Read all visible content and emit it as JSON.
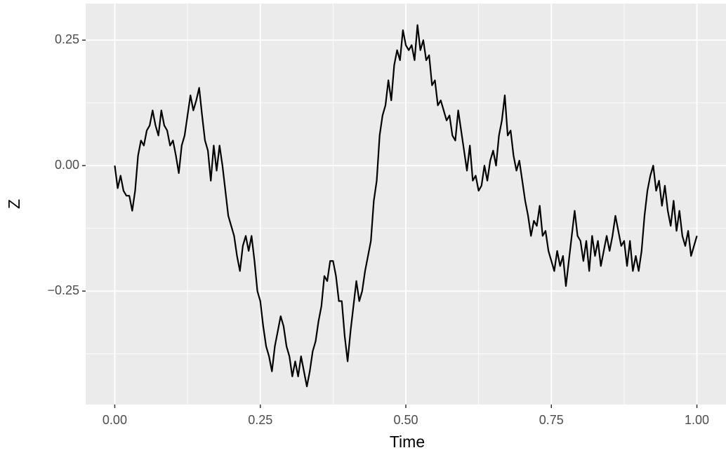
{
  "chart_data": {
    "type": "line",
    "x_label": "Time",
    "y_label": "Z",
    "x": [
      0,
      0.005,
      0.01,
      0.015,
      0.02,
      0.025,
      0.03,
      0.035,
      0.04,
      0.045,
      0.05,
      0.055,
      0.06,
      0.065,
      0.07,
      0.075,
      0.08,
      0.085,
      0.09,
      0.095,
      0.1,
      0.105,
      0.11,
      0.115,
      0.12,
      0.125,
      0.13,
      0.135,
      0.14,
      0.145,
      0.15,
      0.155,
      0.16,
      0.165,
      0.17,
      0.175,
      0.18,
      0.185,
      0.19,
      0.195,
      0.2,
      0.205,
      0.21,
      0.215,
      0.22,
      0.225,
      0.23,
      0.235,
      0.24,
      0.245,
      0.25,
      0.255,
      0.26,
      0.265,
      0.27,
      0.275,
      0.28,
      0.285,
      0.29,
      0.295,
      0.3,
      0.305,
      0.31,
      0.315,
      0.32,
      0.325,
      0.33,
      0.335,
      0.34,
      0.345,
      0.35,
      0.355,
      0.36,
      0.365,
      0.37,
      0.375,
      0.38,
      0.385,
      0.39,
      0.395,
      0.4,
      0.405,
      0.41,
      0.415,
      0.42,
      0.425,
      0.43,
      0.435,
      0.44,
      0.445,
      0.45,
      0.455,
      0.46,
      0.465,
      0.47,
      0.475,
      0.48,
      0.485,
      0.49,
      0.495,
      0.5,
      0.505,
      0.51,
      0.515,
      0.52,
      0.525,
      0.53,
      0.535,
      0.54,
      0.545,
      0.55,
      0.555,
      0.56,
      0.565,
      0.57,
      0.575,
      0.58,
      0.585,
      0.59,
      0.595,
      0.6,
      0.605,
      0.61,
      0.615,
      0.62,
      0.625,
      0.63,
      0.635,
      0.64,
      0.645,
      0.65,
      0.655,
      0.66,
      0.665,
      0.67,
      0.675,
      0.68,
      0.685,
      0.69,
      0.695,
      0.7,
      0.705,
      0.71,
      0.715,
      0.72,
      0.725,
      0.73,
      0.735,
      0.74,
      0.745,
      0.75,
      0.755,
      0.76,
      0.765,
      0.77,
      0.775,
      0.78,
      0.785,
      0.79,
      0.795,
      0.8,
      0.805,
      0.81,
      0.815,
      0.82,
      0.825,
      0.83,
      0.835,
      0.84,
      0.845,
      0.85,
      0.855,
      0.86,
      0.865,
      0.87,
      0.875,
      0.88,
      0.885,
      0.89,
      0.895,
      0.9,
      0.905,
      0.91,
      0.915,
      0.92,
      0.925,
      0.93,
      0.935,
      0.94,
      0.945,
      0.95,
      0.955,
      0.96,
      0.965,
      0.97,
      0.975,
      0.98,
      0.985,
      0.99,
      0.995,
      1
    ],
    "series": [
      {
        "color": "#000000",
        "values": [
          0,
          -0.045,
          -0.02,
          -0.05,
          -0.06,
          -0.06,
          -0.09,
          -0.05,
          0.02,
          0.05,
          0.04,
          0.07,
          0.08,
          0.11,
          0.08,
          0.06,
          0.11,
          0.08,
          0.07,
          0.04,
          0.05,
          0.02,
          -0.015,
          0.04,
          0.06,
          0.1,
          0.14,
          0.11,
          0.13,
          0.155,
          0.1,
          0.05,
          0.03,
          -0.03,
          0.04,
          -0.01,
          0.04,
          0,
          -0.05,
          -0.1,
          -0.12,
          -0.14,
          -0.18,
          -0.21,
          -0.16,
          -0.14,
          -0.17,
          -0.14,
          -0.19,
          -0.25,
          -0.27,
          -0.32,
          -0.36,
          -0.38,
          -0.41,
          -0.36,
          -0.33,
          -0.3,
          -0.32,
          -0.36,
          -0.38,
          -0.42,
          -0.39,
          -0.42,
          -0.38,
          -0.41,
          -0.44,
          -0.41,
          -0.37,
          -0.35,
          -0.31,
          -0.28,
          -0.22,
          -0.23,
          -0.19,
          -0.19,
          -0.22,
          -0.27,
          -0.27,
          -0.34,
          -0.39,
          -0.33,
          -0.28,
          -0.23,
          -0.27,
          -0.25,
          -0.21,
          -0.18,
          -0.15,
          -0.07,
          -0.03,
          0.06,
          0.1,
          0.12,
          0.17,
          0.13,
          0.2,
          0.23,
          0.21,
          0.27,
          0.24,
          0.23,
          0.24,
          0.21,
          0.28,
          0.23,
          0.25,
          0.21,
          0.22,
          0.16,
          0.17,
          0.12,
          0.13,
          0.11,
          0.09,
          0.1,
          0.06,
          0.05,
          0.11,
          0.07,
          0.03,
          -0.01,
          0.04,
          -0.03,
          -0.02,
          -0.05,
          -0.04,
          0,
          -0.03,
          0.01,
          0.03,
          0,
          0.06,
          0.09,
          0.14,
          0.06,
          0.07,
          0.02,
          -0.01,
          0.01,
          -0.03,
          -0.07,
          -0.1,
          -0.14,
          -0.11,
          -0.12,
          -0.08,
          -0.14,
          -0.13,
          -0.17,
          -0.19,
          -0.21,
          -0.17,
          -0.2,
          -0.18,
          -0.24,
          -0.19,
          -0.14,
          -0.09,
          -0.14,
          -0.15,
          -0.19,
          -0.15,
          -0.21,
          -0.14,
          -0.18,
          -0.15,
          -0.2,
          -0.17,
          -0.14,
          -0.17,
          -0.14,
          -0.1,
          -0.13,
          -0.16,
          -0.15,
          -0.2,
          -0.15,
          -0.21,
          -0.18,
          -0.21,
          -0.17,
          -0.1,
          -0.05,
          -0.02,
          0,
          -0.05,
          -0.03,
          -0.08,
          -0.04,
          -0.09,
          -0.12,
          -0.07,
          -0.13,
          -0.09,
          -0.14,
          -0.16,
          -0.13,
          -0.18,
          -0.16,
          -0.14
        ]
      }
    ],
    "xlim": [
      -0.05,
      1.05
    ],
    "ylim": [
      -0.476,
      0.323
    ],
    "xticks": [
      {
        "value": 0,
        "label": "0.00"
      },
      {
        "value": 0.25,
        "label": "0.25"
      },
      {
        "value": 0.5,
        "label": "0.50"
      },
      {
        "value": 0.75,
        "label": "0.75"
      },
      {
        "value": 1,
        "label": "1.00"
      }
    ],
    "yticks": [
      {
        "value": -0.25,
        "label": "−0.25"
      },
      {
        "value": 0,
        "label": "0.00"
      },
      {
        "value": 0.25,
        "label": "0.25"
      }
    ],
    "x_minor_grid": [
      0.125,
      0.375,
      0.625,
      0.875
    ],
    "y_minor_grid": [
      -0.375,
      -0.125,
      0.125
    ],
    "grid": true,
    "background": "#ebebeb"
  }
}
